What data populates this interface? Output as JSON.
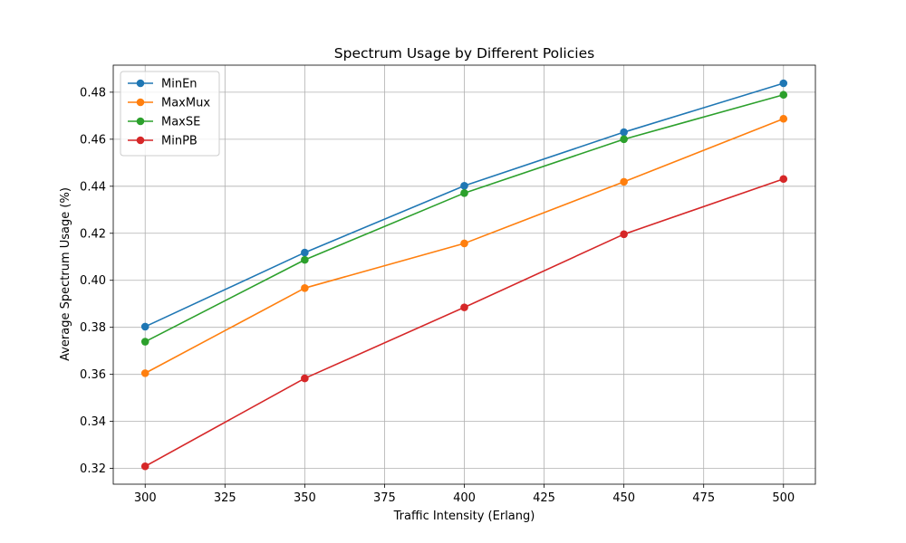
{
  "chart_data": {
    "type": "line",
    "title": "Spectrum Usage by Different Policies",
    "xlabel": "Traffic Intensity (Erlang)",
    "ylabel": "Average Spectrum Usage (%)",
    "xlim": [
      290,
      510
    ],
    "ylim": [
      0.3133,
      0.4915
    ],
    "x": [
      300,
      350,
      400,
      450,
      500
    ],
    "xticks": [
      300,
      325,
      350,
      375,
      400,
      425,
      450,
      475,
      500
    ],
    "yticks": [
      0.32,
      0.34,
      0.36,
      0.38,
      0.4,
      0.42,
      0.44,
      0.46,
      0.48
    ],
    "ytick_labels": [
      "0.32",
      "0.34",
      "0.36",
      "0.38",
      "0.40",
      "0.42",
      "0.44",
      "0.46",
      "0.48"
    ],
    "grid": true,
    "legend_position": "top-left",
    "series": [
      {
        "name": "MinEn",
        "color": "#1f77b4",
        "values": [
          0.3803,
          0.4118,
          0.4402,
          0.463,
          0.4838
        ]
      },
      {
        "name": "MaxMux",
        "color": "#ff7f0e",
        "values": [
          0.3605,
          0.3967,
          0.4157,
          0.4419,
          0.4687
        ]
      },
      {
        "name": "MaxSE",
        "color": "#2ca02c",
        "values": [
          0.3739,
          0.4087,
          0.4371,
          0.46,
          0.4789
        ]
      },
      {
        "name": "MinPB",
        "color": "#d62728",
        "values": [
          0.3209,
          0.3583,
          0.3885,
          0.4196,
          0.4431
        ]
      }
    ]
  }
}
